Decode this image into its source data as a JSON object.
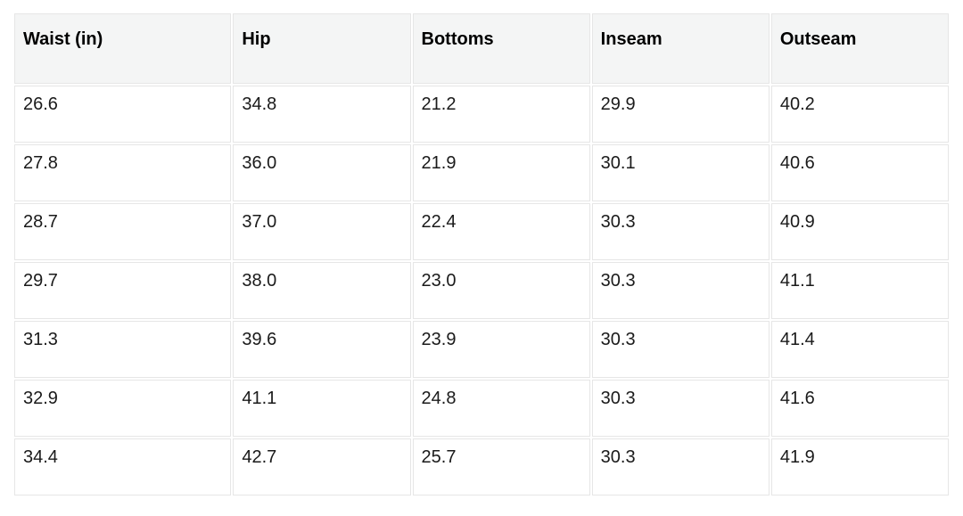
{
  "chart_data": {
    "type": "table",
    "title": "",
    "columns": [
      "Waist (in)",
      "Hip",
      "Bottoms",
      "Inseam",
      "Outseam"
    ],
    "rows": [
      [
        "26.6",
        "34.8",
        "21.2",
        "29.9",
        "40.2"
      ],
      [
        "27.8",
        "36.0",
        "21.9",
        "30.1",
        "40.6"
      ],
      [
        "28.7",
        "37.0",
        "22.4",
        "30.3",
        "40.9"
      ],
      [
        "29.7",
        "38.0",
        "23.0",
        "30.3",
        "41.1"
      ],
      [
        "31.3",
        "39.6",
        "23.9",
        "30.3",
        "41.4"
      ],
      [
        "32.9",
        "41.1",
        "24.8",
        "30.3",
        "41.6"
      ],
      [
        "34.4",
        "42.7",
        "25.7",
        "30.3",
        "41.9"
      ]
    ],
    "layout": {
      "grid": "on",
      "header_position": "top"
    }
  },
  "colors": {
    "header_bg": "#f4f5f5",
    "cell_bg": "#ffffff",
    "border": "#e6e6e6",
    "header_text": "#000000",
    "cell_text": "#1a1a1a",
    "page_bg": "#ffffff"
  }
}
